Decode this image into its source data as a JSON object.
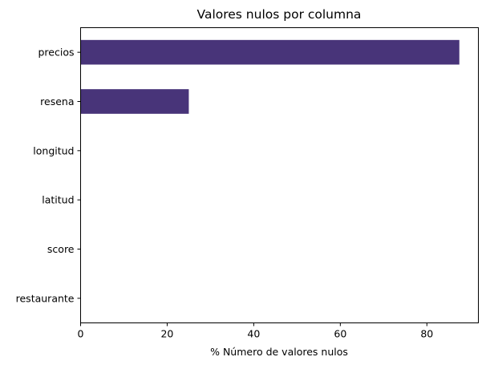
{
  "chart_data": {
    "type": "bar",
    "orientation": "horizontal",
    "title": "Valores nulos por columna",
    "xlabel": "% Número de valores nulos",
    "ylabel": "",
    "categories": [
      "precios",
      "resena",
      "longitud",
      "latitud",
      "score",
      "restaurante"
    ],
    "values": [
      87.5,
      25.0,
      0,
      0,
      0,
      0
    ],
    "xlim": [
      0,
      91.9
    ],
    "xticks": [
      0,
      20,
      40,
      60,
      80
    ],
    "xtick_labels": [
      "0",
      "20",
      "40",
      "60",
      "80"
    ],
    "grid": false,
    "legend": "none",
    "colors": {
      "bar": "#483479",
      "axes": "#000000",
      "background": "#ffffff"
    }
  }
}
